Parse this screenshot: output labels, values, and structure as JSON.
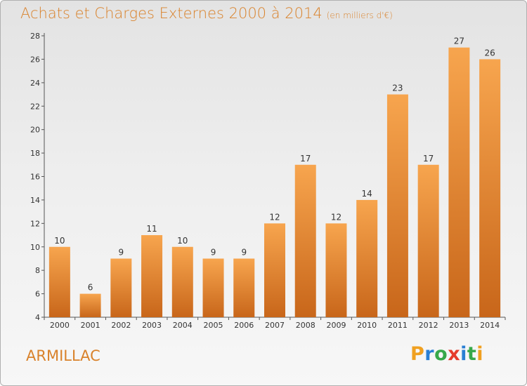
{
  "page": {
    "title": "Achats et Charges Externes 2000 à 2014",
    "unit": "(en milliers d'€)",
    "commune": "ARMILLAC",
    "logo_text": "Proxiti"
  },
  "colors": {
    "title": "#d9822b",
    "bar_light": "#f7a54e",
    "bar_dark": "#c8661a",
    "axis": "#555555",
    "label": "#333333",
    "logo_letters": [
      "#f0a020",
      "#2a7fd4",
      "#37a84a",
      "#e53b2c",
      "#2a7fd4",
      "#37a84a",
      "#f0a020"
    ]
  },
  "chart_data": {
    "type": "bar",
    "title": "Achats et Charges Externes 2000 à 2014",
    "subtitle": "(en milliers d'€)",
    "xlabel": "",
    "ylabel": "",
    "categories": [
      "2000",
      "2001",
      "2002",
      "2003",
      "2004",
      "2005",
      "2006",
      "2007",
      "2008",
      "2009",
      "2010",
      "2011",
      "2012",
      "2013",
      "2014"
    ],
    "values": [
      10,
      6,
      9,
      11,
      10,
      9,
      9,
      12,
      17,
      12,
      14,
      23,
      17,
      27,
      26
    ],
    "ylim": [
      4,
      28
    ],
    "yticks": [
      4,
      6,
      8,
      10,
      12,
      14,
      16,
      18,
      20,
      22,
      24,
      26,
      28
    ],
    "grid": false,
    "data_labels": true
  }
}
